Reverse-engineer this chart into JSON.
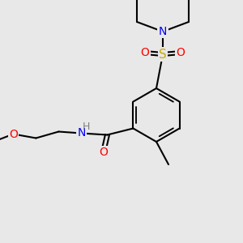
{
  "bg_color": "#e8e8e8",
  "fig_width": 3.0,
  "fig_height": 3.0,
  "dpi": 100,
  "bond_color": "#000000",
  "bond_width": 1.5,
  "font_size": 10,
  "colors": {
    "C": "#000000",
    "N": "#0000ff",
    "O": "#ff0000",
    "S": "#ccaa00",
    "H": "#808080"
  }
}
